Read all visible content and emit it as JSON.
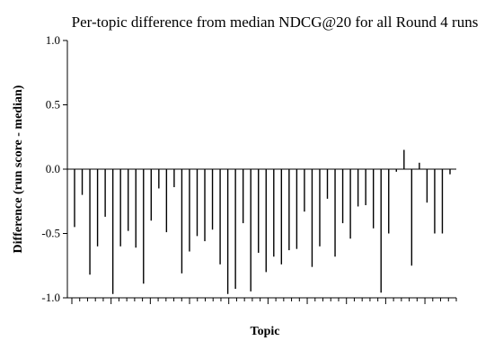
{
  "chart_data": {
    "type": "bar",
    "title": "Per-topic difference from median NDCG@20 for all Round 4 runs",
    "xlabel": "Topic",
    "ylabel": "Difference (run score - median)",
    "ylim": [
      -1.0,
      1.0
    ],
    "y_ticks": [
      "1.0",
      "0.5",
      "0.0",
      "-0.5",
      "-1.0"
    ],
    "y_tick_values": [
      1.0,
      0.5,
      0.0,
      -0.5,
      -1.0
    ],
    "grid": false,
    "legend": "none",
    "values": [
      -0.45,
      -0.2,
      -0.82,
      -0.6,
      -0.37,
      -0.97,
      -0.6,
      -0.48,
      -0.61,
      -0.89,
      -0.4,
      -0.15,
      -0.49,
      -0.14,
      -0.81,
      -0.64,
      -0.52,
      -0.56,
      -0.47,
      -0.74,
      -0.97,
      -0.93,
      -0.42,
      -0.95,
      -0.65,
      -0.8,
      -0.68,
      -0.74,
      -0.63,
      -0.62,
      -0.33,
      -0.76,
      -0.6,
      -0.23,
      -0.68,
      -0.42,
      -0.54,
      -0.29,
      -0.28,
      -0.46,
      -0.96,
      -0.5,
      -0.02,
      0.15,
      -0.75,
      0.05,
      -0.26,
      -0.5,
      -0.5,
      -0.04
    ]
  }
}
